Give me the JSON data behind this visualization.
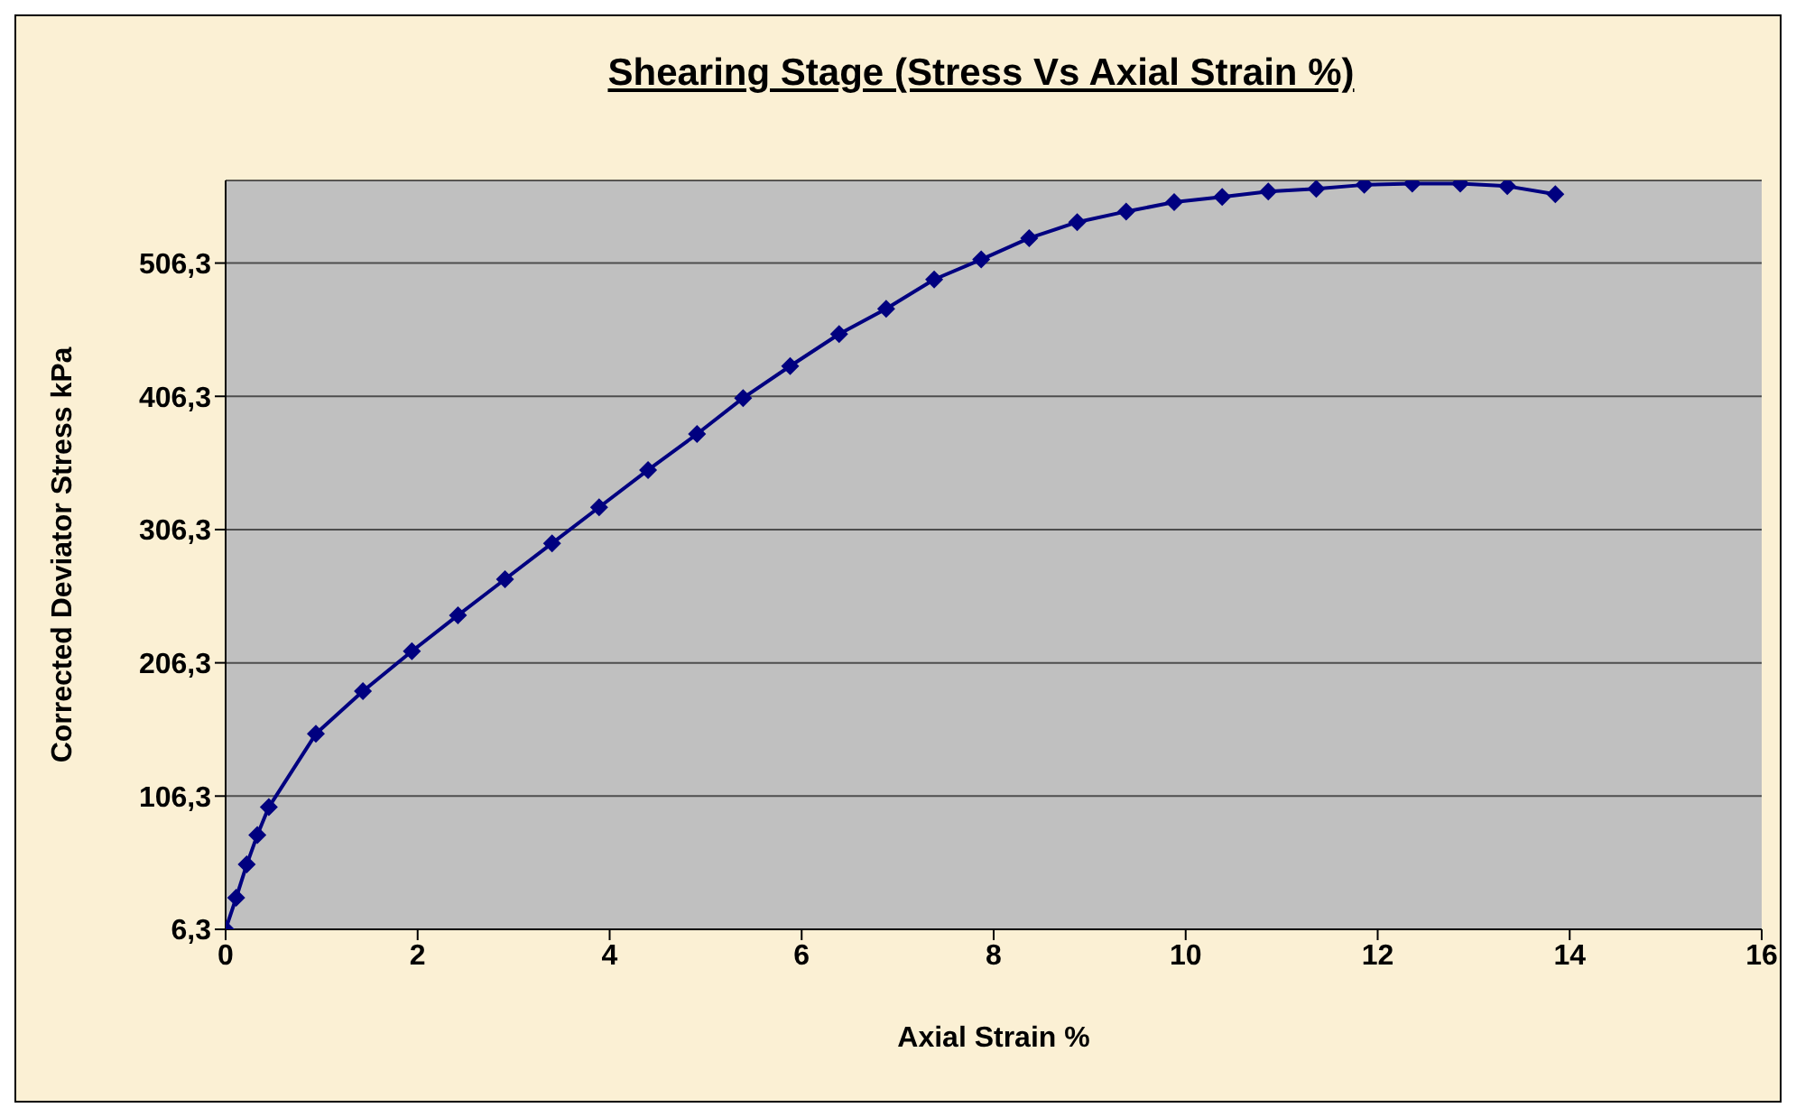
{
  "chart_data": {
    "type": "line",
    "title": "Shearing Stage (Stress Vs Axial Strain %)",
    "xlabel": "Axial Strain %",
    "ylabel": "Corrected Deviator Stress  kPa",
    "x": [
      0,
      0.11,
      0.22,
      0.33,
      0.45,
      0.94,
      1.43,
      1.94,
      2.42,
      2.91,
      3.4,
      3.89,
      4.4,
      4.91,
      5.39,
      5.88,
      6.39,
      6.88,
      7.38,
      7.87,
      8.37,
      8.87,
      9.38,
      9.88,
      10.38,
      10.86,
      11.36,
      11.86,
      12.36,
      12.86,
      13.35,
      13.85
    ],
    "series": [
      {
        "color": "#000080",
        "values": [
          6.3,
          30,
          55,
          77,
          98,
          153,
          185,
          215,
          242,
          269,
          296,
          323,
          351,
          378,
          405,
          429,
          453,
          472,
          494,
          509,
          525,
          537,
          545,
          552,
          556,
          560,
          562,
          565,
          566,
          566,
          564,
          558
        ]
      }
    ],
    "xlim": [
      0,
      16
    ],
    "xticks": [
      0,
      2,
      4,
      6,
      8,
      10,
      12,
      14,
      16
    ],
    "ylim": [
      6.3,
      568.3
    ],
    "yticks": [
      {
        "value": 6.3,
        "label": "6,3"
      },
      {
        "value": 106.3,
        "label": "106,3"
      },
      {
        "value": 206.3,
        "label": "206,3"
      },
      {
        "value": 306.3,
        "label": "306,3"
      },
      {
        "value": 406.3,
        "label": "406,3"
      },
      {
        "value": 506.3,
        "label": "506,3"
      }
    ],
    "grid": "y",
    "legend": false,
    "marker": "diamond",
    "line_style": "solid"
  }
}
